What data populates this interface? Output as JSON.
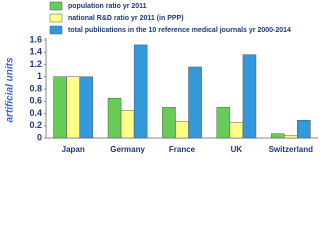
{
  "chart_data": {
    "type": "bar",
    "y_label": "artificial units",
    "categories": [
      "Japan",
      "Germany",
      "France",
      "UK",
      "Switzerland"
    ],
    "series": [
      {
        "name": "population ratio yr 2011",
        "color": "#66cc55",
        "values": [
          1.0,
          0.65,
          0.5,
          0.5,
          0.07
        ]
      },
      {
        "name": "national R&D ratio yr 2011 (in PPP)",
        "color": "#ffff88",
        "values": [
          1.0,
          0.45,
          0.27,
          0.25,
          0.04
        ]
      },
      {
        "name": "total publications in the 10 reference medical journals yr 2000-2014",
        "color": "#3399dd",
        "values": [
          1.0,
          1.52,
          1.16,
          1.36,
          0.29
        ]
      }
    ],
    "ylim": [
      0,
      1.6
    ],
    "yticks": [
      0,
      0.2,
      0.4,
      0.6,
      0.8,
      1,
      1.2,
      1.4,
      1.6
    ],
    "legend": "top-left"
  }
}
